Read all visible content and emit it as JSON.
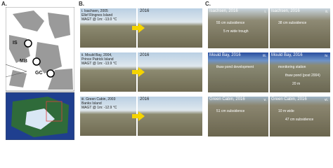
{
  "panel_a": {
    "label": "A.",
    "sites": [
      "IS",
      "MB",
      "GC"
    ]
  },
  "panel_b": {
    "label": "B.",
    "rows": [
      {
        "site": "i. Isachsen, 2005",
        "island": "Ellef Ringnes Island",
        "magt": "MAGT @ 1m: -13.0 °C",
        "year": "2016"
      },
      {
        "site": "ii. Mould Bay, 2004,",
        "island": "Prince Patrick Island",
        "magt": "MAGT @ 1m: -13.9 °C",
        "year": "2016"
      },
      {
        "site": "iii. Green Cabin, 2003",
        "island": "Banks Island",
        "magt": "MAGT @ 1m: -12.9 °C",
        "year": "2016"
      }
    ]
  },
  "panel_c": {
    "label": "C.",
    "photos": [
      {
        "title": "Isachsen, 2016",
        "numeral": "i.",
        "notes": [
          "55 cm subsidence",
          "5 m wide trough"
        ]
      },
      {
        "title": "Isachsen, 2016",
        "numeral": "ii.",
        "notes": [
          "38 cm subsidence"
        ]
      },
      {
        "title": "Mould Bay, 2016",
        "numeral": "iii.",
        "notes": [
          "thaw pond development"
        ]
      },
      {
        "title": "Mould Bay, 2016",
        "numeral": "iv.",
        "notes": [
          "monitoring station",
          "thaw pond (post 2004)",
          "20 m"
        ]
      },
      {
        "title": "Green Cabin, 2016",
        "numeral": "v.",
        "notes": [
          "51 cm subsidence"
        ]
      },
      {
        "title": "Green Cabin, 2016",
        "numeral": "vi.",
        "notes": [
          "10 m wide",
          "47 cm subsidence"
        ]
      }
    ]
  }
}
